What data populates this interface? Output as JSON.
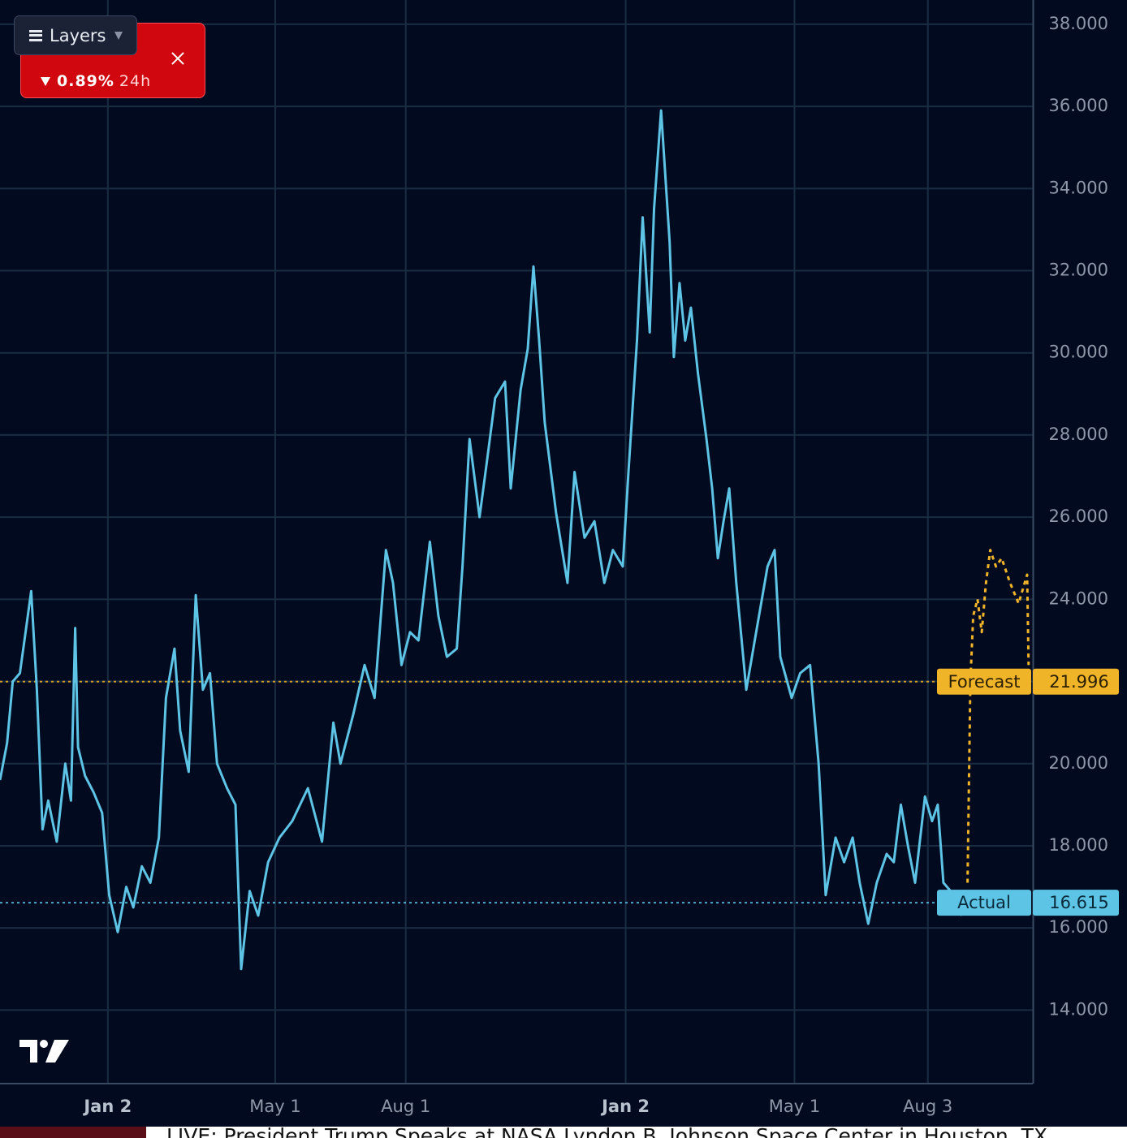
{
  "chart_data": {
    "type": "line",
    "xlim": [
      0,
      728
    ],
    "xticks": [
      {
        "value": 76,
        "label": "Jan 2"
      },
      {
        "value": 194,
        "label": "May 1"
      },
      {
        "value": 286,
        "label": "Aug 1"
      },
      {
        "value": 441,
        "label": "Jan 2"
      },
      {
        "value": 560,
        "label": "May 1"
      },
      {
        "value": 654,
        "label": "Aug 3"
      }
    ],
    "ylim": [
      12.21,
      38.59
    ],
    "yticks": [
      {
        "value": 14,
        "label": "14.000"
      },
      {
        "value": 16,
        "label": "16.000"
      },
      {
        "value": 18,
        "label": "18.000"
      },
      {
        "value": 20,
        "label": "20.000"
      },
      {
        "value": 22,
        "label": "22.000"
      },
      {
        "value": 24,
        "label": "24.000"
      },
      {
        "value": 26,
        "label": "26.000"
      },
      {
        "value": 28,
        "label": "28.000"
      },
      {
        "value": 30,
        "label": "30.000"
      },
      {
        "value": 32,
        "label": "32.000"
      },
      {
        "value": 34,
        "label": "34.000"
      },
      {
        "value": 36,
        "label": "36.000"
      },
      {
        "value": 38,
        "label": "38.000"
      }
    ],
    "grid": true,
    "series": [
      {
        "name": "Actual",
        "color": "#5ec4e6",
        "dashed": false,
        "x": [
          0,
          5,
          9,
          14,
          18,
          22,
          26,
          30,
          34,
          40,
          46,
          50,
          53,
          55,
          60,
          66,
          72,
          77,
          83,
          89,
          94,
          100,
          106,
          112,
          117,
          123,
          127,
          133,
          138,
          143,
          148,
          153,
          160,
          166,
          170,
          176,
          182,
          189,
          197,
          206,
          217,
          227,
          235,
          240,
          249,
          257,
          264,
          272,
          277,
          283,
          289,
          295,
          303,
          309,
          315,
          322,
          326,
          331,
          338,
          343,
          349,
          356,
          360,
          367,
          372,
          376,
          380,
          384,
          392,
          400,
          405,
          412,
          419,
          426,
          432,
          439,
          443,
          449,
          453,
          458,
          461,
          466,
          472,
          475,
          479,
          483,
          487,
          492,
          498,
          502,
          506,
          510,
          514,
          519,
          526,
          533,
          541,
          546,
          550,
          558,
          564,
          571,
          577,
          582,
          589,
          595,
          601,
          606,
          612,
          618,
          625,
          630,
          635,
          640,
          645,
          652,
          657,
          661,
          665,
          670,
          678
        ],
        "values": [
          19.6,
          20.5,
          22.0,
          22.2,
          23.2,
          24.2,
          21.8,
          18.4,
          19.1,
          18.1,
          20.0,
          19.1,
          23.3,
          20.4,
          19.7,
          19.3,
          18.8,
          16.8,
          15.9,
          17.0,
          16.5,
          17.5,
          17.1,
          18.2,
          21.6,
          22.8,
          20.8,
          19.8,
          24.1,
          21.8,
          22.2,
          20.0,
          19.4,
          19.0,
          15.0,
          16.9,
          16.3,
          17.6,
          18.2,
          18.6,
          19.4,
          18.1,
          21.0,
          20.0,
          21.2,
          22.4,
          21.6,
          25.2,
          24.4,
          22.4,
          23.2,
          23.0,
          25.4,
          23.6,
          22.6,
          22.8,
          24.8,
          27.9,
          26.0,
          27.3,
          28.9,
          29.3,
          26.7,
          29.1,
          30.1,
          32.1,
          30.3,
          28.3,
          26.1,
          24.4,
          27.1,
          25.5,
          25.9,
          24.4,
          25.2,
          24.8,
          27.1,
          30.3,
          33.3,
          30.5,
          33.5,
          35.9,
          32.7,
          29.9,
          31.7,
          30.3,
          31.1,
          29.5,
          27.9,
          26.7,
          25.0,
          25.9,
          26.7,
          24.4,
          21.8,
          23.2,
          24.8,
          25.2,
          22.6,
          21.6,
          22.2,
          22.4,
          20.0,
          16.8,
          18.2,
          17.6,
          18.2,
          17.1,
          16.1,
          17.1,
          17.8,
          17.6,
          19.0,
          18.0,
          17.1,
          19.2,
          18.6,
          19.0,
          17.1,
          16.9,
          16.3
        ]
      },
      {
        "name": "Forecast",
        "color": "#f0b429",
        "dashed": true,
        "x": [
          682,
          684,
          686,
          689,
          692,
          695,
          698,
          702,
          706,
          712,
          718,
          724,
          725
        ],
        "values": [
          17.1,
          22.0,
          23.6,
          24.0,
          23.2,
          24.4,
          25.2,
          24.8,
          25.0,
          24.4,
          23.9,
          24.6,
          22.4
        ]
      }
    ],
    "price_tags": [
      {
        "label": "Forecast",
        "value": 21.996,
        "color": "#f0b429",
        "text_color": "#2a1f05"
      },
      {
        "label": "Actual",
        "value": 16.615,
        "color": "#5ec4e6",
        "text_color": "#0a2a3a"
      }
    ]
  },
  "overlay": {
    "button": "Layers",
    "change": "0.89%",
    "period": "24h"
  },
  "ticker": "LIVE: President Trump Speaks at NASA Lyndon B. Johnson Space Center in Houston, TX"
}
